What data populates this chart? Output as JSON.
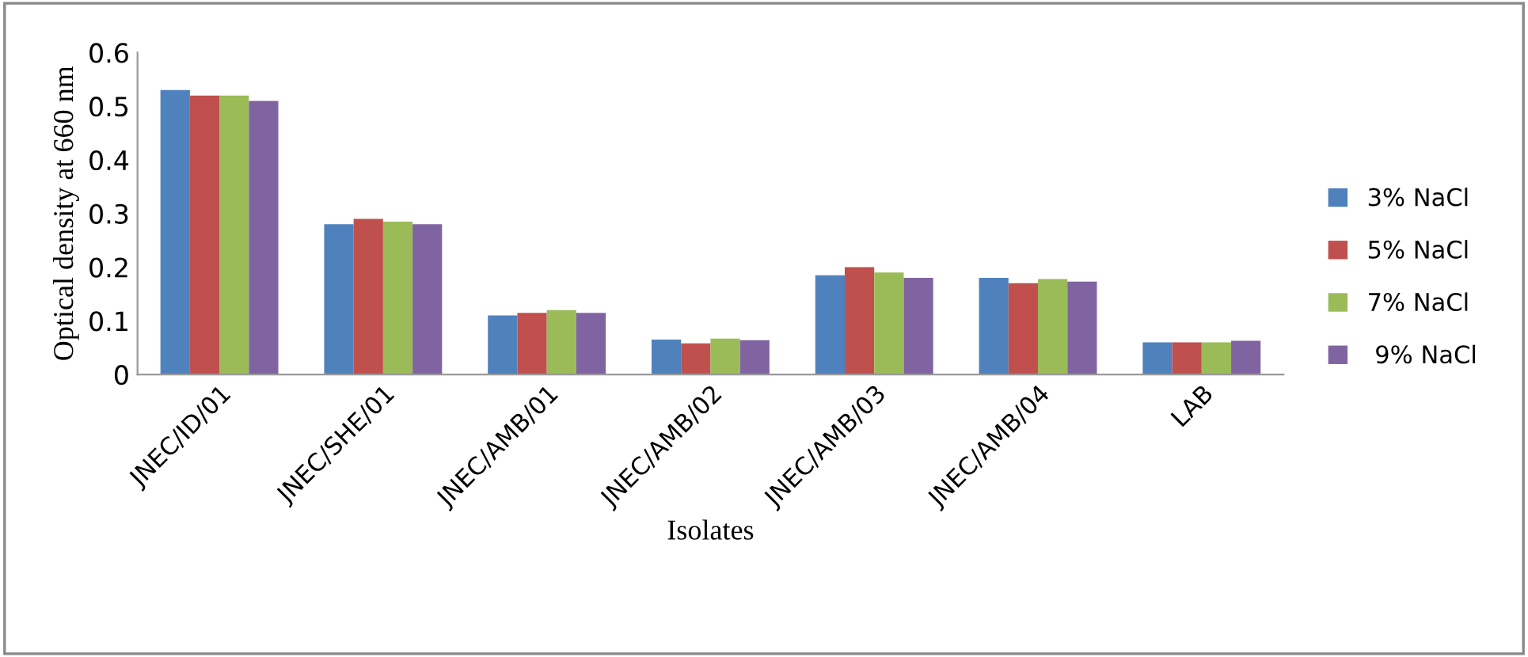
{
  "chart_data": {
    "type": "bar",
    "xlabel": "Isolates",
    "ylabel": "Optical density at 660 nm",
    "categories": [
      "JNEC/ID/01",
      "JNEC/SHE/01",
      "JNEC/AMB/01",
      "JNEC/AMB/02",
      "JNEC/AMB/03",
      "JNEC/AMB/04",
      "LAB"
    ],
    "series": [
      {
        "name": "3% NaCl",
        "color": "#4f81bd",
        "values": [
          0.53,
          0.28,
          0.11,
          0.065,
          0.185,
          0.18,
          0.06
        ]
      },
      {
        "name": "5% NaCl",
        "color": "#c0504d",
        "values": [
          0.52,
          0.29,
          0.115,
          0.058,
          0.2,
          0.17,
          0.06
        ]
      },
      {
        "name": "7% NaCl",
        "color": "#9bbb59",
        "values": [
          0.52,
          0.285,
          0.12,
          0.067,
          0.19,
          0.178,
          0.06
        ]
      },
      {
        "name": " 9% NaCl",
        "color": "#8064a2",
        "values": [
          0.51,
          0.28,
          0.115,
          0.064,
          0.18,
          0.173,
          0.063
        ]
      }
    ],
    "ylim": [
      0,
      0.6
    ],
    "yticks": [
      {
        "value": 0,
        "label": "0"
      },
      0.1,
      0.2,
      0.3,
      0.4,
      0.5,
      0.6
    ],
    "grid": false,
    "legend": "right"
  }
}
